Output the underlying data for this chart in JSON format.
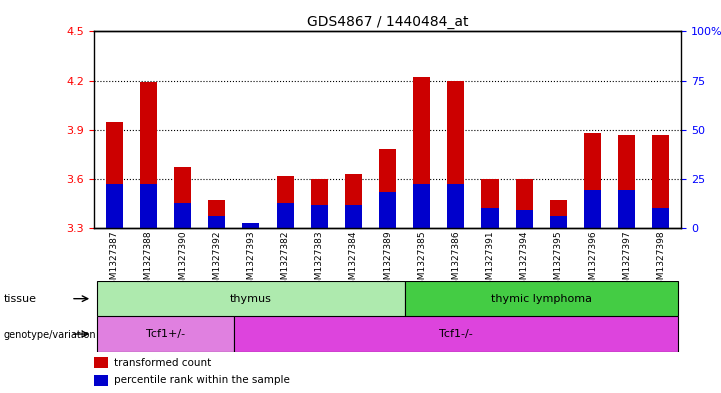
{
  "title": "GDS4867 / 1440484_at",
  "samples": [
    "GSM1327387",
    "GSM1327388",
    "GSM1327390",
    "GSM1327392",
    "GSM1327393",
    "GSM1327382",
    "GSM1327383",
    "GSM1327384",
    "GSM1327389",
    "GSM1327385",
    "GSM1327386",
    "GSM1327391",
    "GSM1327394",
    "GSM1327395",
    "GSM1327396",
    "GSM1327397",
    "GSM1327398"
  ],
  "red_values": [
    3.95,
    4.19,
    3.67,
    3.47,
    3.33,
    3.62,
    3.6,
    3.63,
    3.78,
    4.22,
    4.2,
    3.6,
    3.6,
    3.47,
    3.88,
    3.87,
    3.87
  ],
  "blue_values": [
    3.57,
    3.57,
    3.45,
    3.37,
    3.33,
    3.45,
    3.44,
    3.44,
    3.52,
    3.57,
    3.57,
    3.42,
    3.41,
    3.37,
    3.53,
    3.53,
    3.42
  ],
  "ymin": 3.3,
  "ymax": 4.5,
  "yticks_left": [
    3.3,
    3.6,
    3.9,
    4.2,
    4.5
  ],
  "yticks_right": [
    0,
    25,
    50,
    75,
    100
  ],
  "right_tick_labels": [
    "0",
    "25",
    "50",
    "75",
    "100%"
  ],
  "tissue_groups": [
    {
      "label": "thymus",
      "start": 0,
      "end": 9,
      "color": "#aeeaae"
    },
    {
      "label": "thymic lymphoma",
      "start": 9,
      "end": 17,
      "color": "#44cc44"
    }
  ],
  "genotype_groups": [
    {
      "label": "Tcf1+/-",
      "start": 0,
      "end": 4,
      "color": "#e080e0"
    },
    {
      "label": "Tcf1-/-",
      "start": 4,
      "end": 17,
      "color": "#dd44dd"
    }
  ],
  "legend_items": [
    {
      "label": "transformed count",
      "color": "#CC0000"
    },
    {
      "label": "percentile rank within the sample",
      "color": "#0000CC"
    }
  ],
  "bar_width": 0.5,
  "red_color": "#CC0000",
  "blue_color": "#0000CC",
  "label_bg": "#DCDCDC",
  "plot_bg": "#FFFFFF"
}
